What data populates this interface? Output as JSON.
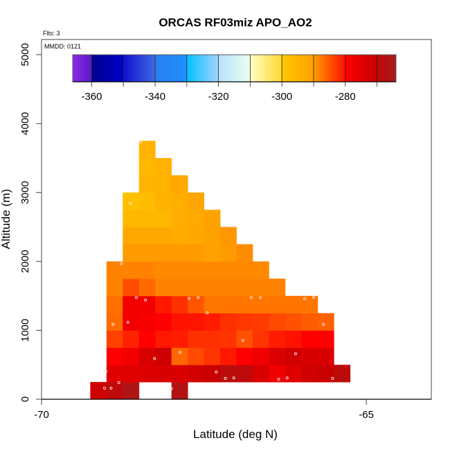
{
  "chart_data": {
    "type": "heatmap",
    "title": "ORCAS RF03miz APO_AO2",
    "flights_label": "Flts: 3",
    "date_label": "MMDD: 0121",
    "xlabel": "Latitude (deg N)",
    "ylabel": "Altitude (m)",
    "xlim": [
      -70,
      -64
    ],
    "ylim": [
      0,
      5220
    ],
    "xticks": [
      -70,
      -65
    ],
    "yticks": [
      0,
      1000,
      2000,
      3000,
      4000,
      5000
    ],
    "grid": false,
    "lat_bin": 0.25,
    "alt_bin": 250,
    "colorbar": {
      "range": [
        -366,
        -264
      ],
      "ticks": [
        -360,
        -350,
        -340,
        -330,
        -320,
        -310,
        -300,
        -290,
        -280,
        -270
      ],
      "tick_labels": [
        "-360",
        "-340",
        "-320",
        "-300",
        "-280"
      ],
      "placement": "top",
      "stops": [
        [
          -366,
          "#8a2be2"
        ],
        [
          -360.01,
          "#5a18c8"
        ],
        [
          -360,
          "#00008b"
        ],
        [
          -350.01,
          "#0000cd"
        ],
        [
          -350,
          "#1010d0"
        ],
        [
          -340.01,
          "#4169e1"
        ],
        [
          -340,
          "#2a80f0"
        ],
        [
          -330.01,
          "#1e90ff"
        ],
        [
          -330,
          "#00bfff"
        ],
        [
          -320.01,
          "#a4d3ff"
        ],
        [
          -320,
          "#b8e2ff"
        ],
        [
          -310.01,
          "#eafff0"
        ],
        [
          -310,
          "#ffffc8"
        ],
        [
          -300.01,
          "#ffd830"
        ],
        [
          -300,
          "#ffc800"
        ],
        [
          -290.01,
          "#ffa000"
        ],
        [
          -290,
          "#ff9b00"
        ],
        [
          -280.01,
          "#ff1000"
        ],
        [
          -280,
          "#ff0000"
        ],
        [
          -270.01,
          "#c80000"
        ],
        [
          -270,
          "#c00808"
        ],
        [
          -264,
          "#a81c1c"
        ]
      ]
    },
    "rows": [
      {
        "alt_bottom": 0,
        "lat_start": -69.25,
        "values": [
          -271.6,
          -269.5,
          -266,
          null,
          null,
          -267
        ]
      },
      {
        "alt_bottom": 250,
        "lat_start": -69.0,
        "values": [
          -274.6,
          -274.6,
          -273.8,
          -273.1,
          -273.1,
          -271.6,
          -270.2,
          -268.5,
          -269.2,
          -273.1,
          -277.2,
          -274.6,
          -271.6,
          -270.2,
          -269
        ]
      },
      {
        "alt_bottom": 500,
        "lat_start": -69.0,
        "values": [
          -279.8,
          -277.6,
          -273.1,
          -270.9,
          -286.2,
          -284.2,
          -282.6,
          -280.6,
          -280,
          -277.2,
          -273.8,
          -271.6,
          -273.1,
          -273.1
        ]
      },
      {
        "alt_bottom": 750,
        "lat_start": -69.0,
        "values": [
          -283.5,
          -281.3,
          -280,
          -280.5,
          -280.9,
          -282.3,
          -282.3,
          -282.6,
          -284.7,
          -282.6,
          -280.9,
          -280.2,
          -279.8,
          -280
        ]
      },
      {
        "alt_bottom": 1000,
        "lat_start": -69.0,
        "values": [
          -286.5,
          -277.6,
          -278.7,
          -279.8,
          -280.2,
          -280.3,
          -280.9,
          -282.3,
          -282.9,
          -283.2,
          -284,
          -284.7,
          -285.5,
          -285.8
        ]
      },
      {
        "alt_bottom": 1250,
        "lat_start": -69.0,
        "values": [
          -286.9,
          -277.6,
          -277.6,
          -280.6,
          -282.3,
          -285,
          -287.3,
          -287.3,
          -287.3,
          -287.3,
          -287.3,
          -287.3,
          -287.3
        ]
      },
      {
        "alt_bottom": 1500,
        "lat_start": -69.0,
        "values": [
          -288.2,
          -284.2,
          -286.5,
          -288.2,
          -288.2,
          -288.2,
          -288.2,
          -288.2,
          -288.2,
          -288.2,
          -288.2
        ]
      },
      {
        "alt_bottom": 1750,
        "lat_start": -69.0,
        "values": [
          -288.3,
          -288.3,
          -288.3,
          -288.8,
          -288.8,
          -288.8,
          -288.8,
          -288.8,
          -288.8,
          -288.8
        ]
      },
      {
        "alt_bottom": 2000,
        "lat_start": -68.75,
        "values": [
          -289.9,
          -289.9,
          -289.9,
          -289.9,
          -289.9,
          -290.5,
          -289.9,
          -288.9
        ]
      },
      {
        "alt_bottom": 2250,
        "lat_start": -68.75,
        "values": [
          -292,
          -292,
          -292,
          -292.8,
          -292,
          -290.5,
          -289.8
        ]
      },
      {
        "alt_bottom": 2500,
        "lat_start": -68.75,
        "values": [
          -296,
          -296,
          -296,
          -293.3,
          -292.5,
          -290.5
        ]
      },
      {
        "alt_bottom": 2750,
        "lat_start": -68.75,
        "values": [
          -298,
          -297,
          -294.8,
          -293.5,
          -291.3
        ]
      },
      {
        "alt_bottom": 3000,
        "lat_start": -68.5,
        "values": [
          -295.3,
          -294.5,
          -292
        ]
      },
      {
        "alt_bottom": 3250,
        "lat_start": -68.5,
        "values": [
          -295.8,
          -294
        ]
      },
      {
        "alt_bottom": 3500,
        "lat_start": -68.5,
        "values": [
          -294.8
        ]
      }
    ],
    "samples": [
      [
        -68.77,
        1969
      ],
      [
        -68.54,
        1476
      ],
      [
        -68.4,
        1439
      ],
      [
        -67.73,
        1462
      ],
      [
        -67.59,
        1476
      ],
      [
        -66.77,
        1476
      ],
      [
        -66.63,
        1476
      ],
      [
        -65.95,
        1459
      ],
      [
        -65.81,
        1479
      ],
      [
        -67.45,
        1254
      ],
      [
        -68.9,
        1086
      ],
      [
        -68.67,
        1117
      ],
      [
        -65.66,
        1086
      ],
      [
        -66.9,
        852
      ],
      [
        -67.87,
        681
      ],
      [
        -68.26,
        590
      ],
      [
        -66.09,
        661
      ],
      [
        -69.01,
        402
      ],
      [
        -67.31,
        395
      ],
      [
        -67.17,
        302
      ],
      [
        -67.04,
        309
      ],
      [
        -66.35,
        289
      ],
      [
        -66.22,
        309
      ],
      [
        -65.52,
        302
      ],
      [
        -68.81,
        241
      ],
      [
        -69.03,
        161
      ],
      [
        -68.93,
        161
      ],
      [
        -68.0,
        154
      ],
      [
        -68.48,
        3732
      ],
      [
        -68.63,
        2844
      ]
    ]
  }
}
